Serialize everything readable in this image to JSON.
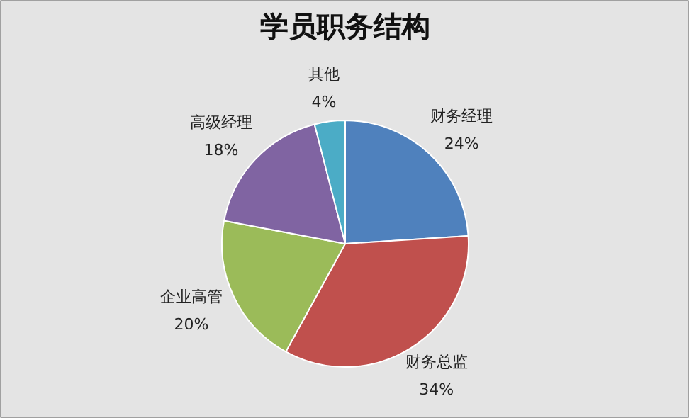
{
  "chart_data": {
    "type": "pie",
    "title": "学员职务结构",
    "categories": [
      "财务经理",
      "财务总监",
      "企业高管",
      "高级经理",
      "其他"
    ],
    "values": [
      24,
      34,
      20,
      18,
      4
    ],
    "value_labels": [
      "24%",
      "34%",
      "20%",
      "18%",
      "4%"
    ],
    "colors": [
      "#4f81bd",
      "#c0504d",
      "#9bbb59",
      "#8064a2",
      "#4bacc6"
    ]
  }
}
